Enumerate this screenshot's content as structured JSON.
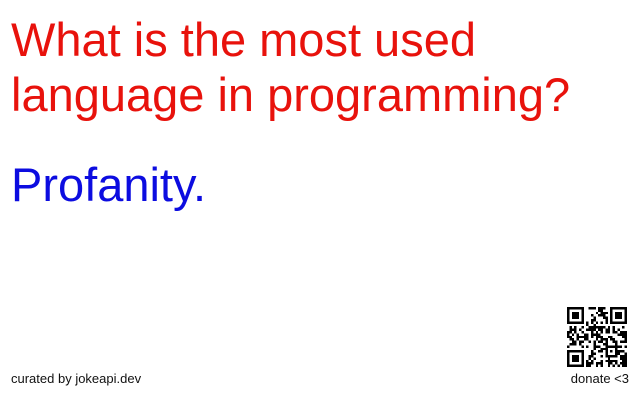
{
  "joke": {
    "setup": "What is the most used language in programming?",
    "delivery": "Profanity."
  },
  "footer": {
    "credit": "curated by jokeapi.dev",
    "donate": "donate <3"
  },
  "colors": {
    "setup": "#e8120c",
    "delivery": "#0c0ce0",
    "footer_text": "#111111",
    "background": "#ffffff"
  },
  "icons": {
    "qr": "qr-code-icon"
  }
}
